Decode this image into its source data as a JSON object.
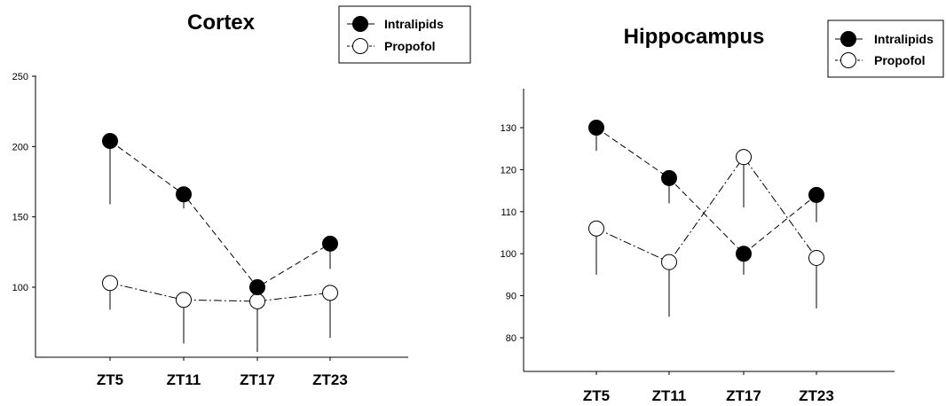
{
  "chart_data": [
    {
      "type": "line",
      "title": "Cortex",
      "xlabel": "",
      "ylabel": "",
      "categories": [
        "ZT5",
        "ZT11",
        "ZT17",
        "ZT23"
      ],
      "y_ticks": [
        100,
        150,
        200,
        250
      ],
      "ylim": [
        75,
        250
      ],
      "series": [
        {
          "name": "Intralipids",
          "marker": "filled-circle",
          "color": "#000000",
          "values": [
            204,
            166,
            100,
            131
          ],
          "error_lower": [
            45,
            10,
            0,
            18
          ]
        },
        {
          "name": "Propofol",
          "marker": "open-circle",
          "color": "#000000",
          "values": [
            103,
            91,
            90,
            96
          ],
          "error_lower": [
            19,
            31,
            36,
            32
          ]
        }
      ],
      "legend": "top-right",
      "grid": false
    },
    {
      "type": "line",
      "title": "Hippocampus",
      "xlabel": "",
      "ylabel": "",
      "categories": [
        "ZT5",
        "ZT11",
        "ZT17",
        "ZT23"
      ],
      "y_ticks": [
        80,
        90,
        100,
        110,
        120,
        130
      ],
      "ylim": [
        73,
        140
      ],
      "series": [
        {
          "name": "Intralipids",
          "marker": "filled-circle",
          "color": "#000000",
          "values": [
            130,
            118,
            100,
            114
          ],
          "error_lower": [
            5.5,
            6,
            5,
            6.5
          ]
        },
        {
          "name": "Propofol",
          "marker": "open-circle",
          "color": "#000000",
          "values": [
            106,
            98,
            123,
            99
          ],
          "error_lower": [
            11,
            13,
            12,
            12
          ]
        }
      ],
      "legend": "top-right",
      "grid": false
    }
  ]
}
